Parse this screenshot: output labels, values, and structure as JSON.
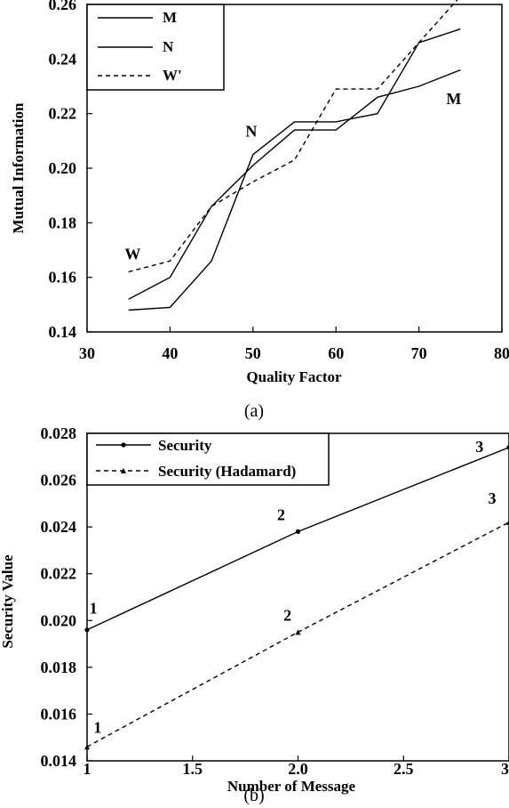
{
  "chart_data": [
    {
      "type": "line",
      "caption": "(a)",
      "xlabel": "Quality Factor",
      "ylabel": "Mutual Information",
      "xlim": [
        30,
        80
      ],
      "ylim": [
        0.14,
        0.26
      ],
      "xticks": [
        "30",
        "40",
        "50",
        "60",
        "70",
        "80"
      ],
      "yticks": [
        "0.14",
        "0.16",
        "0.18",
        "0.20",
        "0.22",
        "0.24",
        "0.26"
      ],
      "legend_position": "top-left",
      "series": [
        {
          "name": "M",
          "dash": "solid",
          "points": [
            [
              35,
              0.152
            ],
            [
              40,
              0.16
            ],
            [
              45,
              0.186
            ],
            [
              50,
              0.201
            ],
            [
              55,
              0.214
            ],
            [
              60,
              0.214
            ],
            [
              65,
              0.226
            ],
            [
              70,
              0.23
            ],
            [
              75,
              0.236
            ]
          ]
        },
        {
          "name": "N",
          "dash": "solid",
          "points": [
            [
              35,
              0.148
            ],
            [
              40,
              0.149
            ],
            [
              45,
              0.166
            ],
            [
              50,
              0.205
            ],
            [
              55,
              0.217
            ],
            [
              60,
              0.217
            ],
            [
              65,
              0.22
            ],
            [
              70,
              0.246
            ],
            [
              75,
              0.251
            ]
          ]
        },
        {
          "name": "W'",
          "dash": "dashed",
          "points": [
            [
              35,
              0.162
            ],
            [
              40,
              0.166
            ],
            [
              45,
              0.186
            ],
            [
              50,
              0.195
            ],
            [
              55,
              0.203
            ],
            [
              60,
              0.229
            ],
            [
              65,
              0.229
            ],
            [
              70,
              0.246
            ],
            [
              75,
              0.263
            ]
          ]
        }
      ],
      "annotations": [
        {
          "text": "N",
          "x": 49.8,
          "y": 0.2115
        },
        {
          "text": "W",
          "x": 35.5,
          "y": 0.1665
        },
        {
          "text": "M",
          "x": 74.2,
          "y": 0.2235
        }
      ]
    },
    {
      "type": "line",
      "caption": "(b)",
      "xlabel": "Number of Message",
      "ylabel": "Security Value",
      "xlim": [
        1,
        3
      ],
      "ylim": [
        0.014,
        0.028
      ],
      "xticks": [
        "1",
        "1.5",
        "2.0",
        "2.5",
        "3"
      ],
      "yticks": [
        "0.014",
        "0.016",
        "0.018",
        "0.020",
        "0.022",
        "0.024",
        "0.026",
        "0.028"
      ],
      "legend_position": "top-left",
      "series": [
        {
          "name": "Security",
          "dash": "solid",
          "points": [
            [
              1,
              0.0196
            ],
            [
              2,
              0.0238
            ],
            [
              3,
              0.0274
            ]
          ]
        },
        {
          "name": "Security (Hadamard)",
          "dash": "dashed",
          "points": [
            [
              1,
              0.0146
            ],
            [
              2,
              0.0195
            ],
            [
              3,
              0.0242
            ]
          ]
        }
      ],
      "annotations": [
        {
          "text": "1",
          "x": 1.03,
          "y": 0.0203
        },
        {
          "text": "2",
          "x": 1.92,
          "y": 0.0243
        },
        {
          "text": "3",
          "x": 2.86,
          "y": 0.0272
        },
        {
          "text": "1",
          "x": 1.05,
          "y": 0.0152
        },
        {
          "text": "2",
          "x": 1.95,
          "y": 0.02
        },
        {
          "text": "3",
          "x": 2.92,
          "y": 0.025
        }
      ]
    }
  ]
}
